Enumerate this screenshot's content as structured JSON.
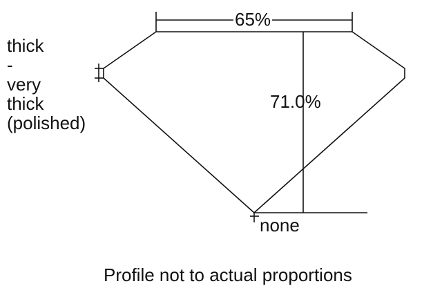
{
  "girdle_label": [
    "thick",
    "-",
    "very",
    "thick",
    "(polished)"
  ],
  "table_percent": "65%",
  "total_depth": "71.0%",
  "culet_label": "none",
  "note": "Profile not to actual proportions"
}
